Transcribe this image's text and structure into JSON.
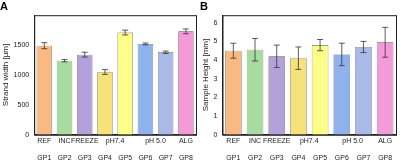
{
  "chart_data": [
    {
      "type": "bar",
      "title": "A",
      "ylabel": "Strand width [µm]",
      "categories": [
        "GP1",
        "GP2",
        "GP3",
        "GP4",
        "GP5",
        "GP6",
        "GP7",
        "GP8"
      ],
      "groups": [
        {
          "label": "REF",
          "span": [
            "GP1"
          ]
        },
        {
          "label": "INC",
          "span": [
            "GP2"
          ]
        },
        {
          "label": "FREEZE",
          "span": [
            "GP3"
          ]
        },
        {
          "label": "pH7.4",
          "span": [
            "GP4",
            "GP5"
          ]
        },
        {
          "label": "pH 5.0",
          "span": [
            "GP6",
            "GP7"
          ]
        },
        {
          "label": "ALG",
          "span": [
            "GP8"
          ]
        }
      ],
      "values": [
        1490,
        1240,
        1340,
        1050,
        1710,
        1520,
        1380,
        1730
      ],
      "errors": [
        50,
        20,
        40,
        40,
        40,
        15,
        20,
        40
      ],
      "colors": [
        "#fbb982",
        "#a8dba0",
        "#b3a2d9",
        "#f5e27a",
        "#fdfd8a",
        "#8fb1ec",
        "#a9b9e8",
        "#f49ad8"
      ],
      "ylim": [
        0,
        2000
      ],
      "yticks": [
        0,
        500,
        1000,
        1500
      ],
      "grid": false
    },
    {
      "type": "bar",
      "title": "B",
      "ylabel": "Sample Height [mm]",
      "categories": [
        "GP1",
        "GP2",
        "GP3",
        "GP4",
        "GP5",
        "GP6",
        "GP7",
        "GP8"
      ],
      "groups": [
        {
          "label": "REF",
          "span": [
            "GP1"
          ]
        },
        {
          "label": "INC",
          "span": [
            "GP2"
          ]
        },
        {
          "label": "FREEZE",
          "span": [
            "GP3"
          ]
        },
        {
          "label": "pH7.4",
          "span": [
            "GP4",
            "GP5"
          ]
        },
        {
          "label": "pH 5.0",
          "span": [
            "GP6",
            "GP7"
          ]
        },
        {
          "label": "ALG",
          "span": [
            "GP8"
          ]
        }
      ],
      "values": [
        4.5,
        4.55,
        4.2,
        4.1,
        4.8,
        4.3,
        4.7,
        4.95
      ],
      "errors": [
        0.4,
        0.6,
        0.6,
        0.6,
        0.3,
        0.6,
        0.3,
        0.8
      ],
      "colors": [
        "#fbb982",
        "#a8dba0",
        "#b3a2d9",
        "#f5e27a",
        "#fdfd8a",
        "#8fb1ec",
        "#a9b9e8",
        "#f49ad8"
      ],
      "ylim": [
        0,
        6.4
      ],
      "yticks": [
        0,
        1,
        2,
        3,
        4,
        5,
        6
      ],
      "grid": false
    }
  ]
}
